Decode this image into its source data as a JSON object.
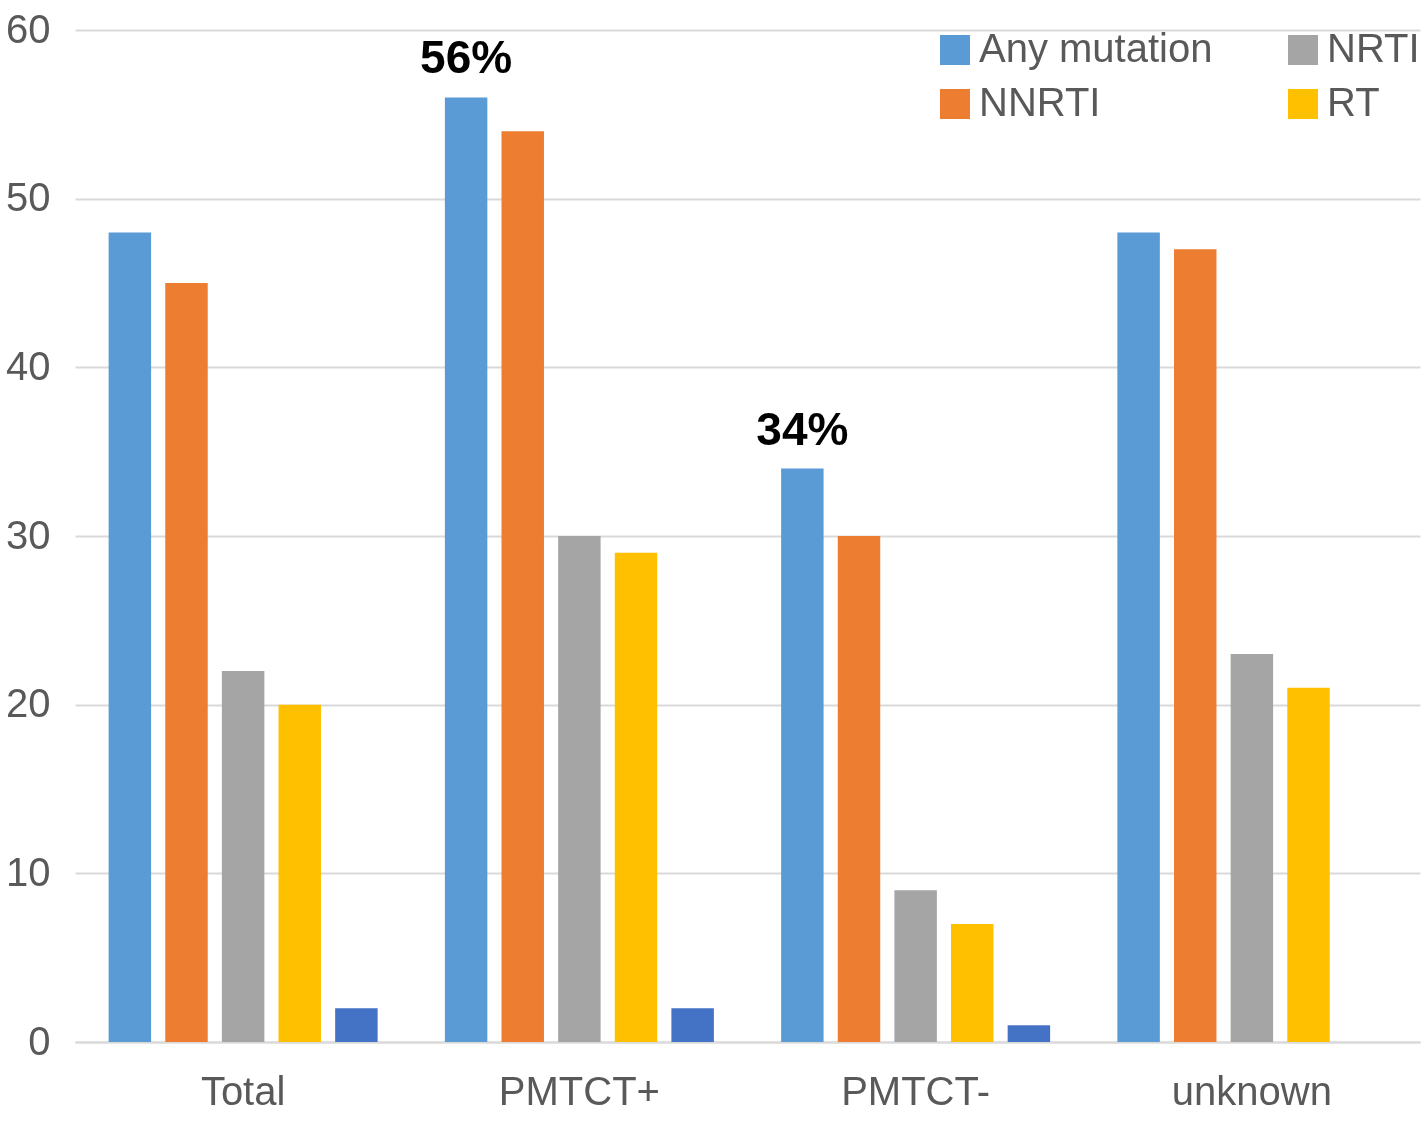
{
  "chart_data": {
    "type": "bar",
    "categories": [
      "Total",
      "PMTCT+",
      "PMTCT-",
      "unknown"
    ],
    "series": [
      {
        "name": "Any mutation",
        "color": "#5b9bd5",
        "values": [
          48,
          56,
          34,
          48
        ],
        "value_labels": [
          null,
          "56%",
          "34%",
          null
        ]
      },
      {
        "name": "NNRTI",
        "color": "#ed7d31",
        "values": [
          45,
          54,
          30,
          47
        ]
      },
      {
        "name": "NRTI",
        "color": "#a5a5a5",
        "values": [
          22,
          30,
          9,
          23
        ]
      },
      {
        "name": "RT",
        "color": "#ffc000",
        "values": [
          20,
          29,
          7,
          21
        ]
      },
      {
        "color": "#4472c4",
        "values": [
          2,
          2,
          1,
          null
        ]
      }
    ],
    "ylim": [
      0,
      60
    ],
    "yticks": [
      0,
      10,
      20,
      30,
      40,
      50,
      60
    ],
    "grid": "y",
    "legend": "top right"
  }
}
